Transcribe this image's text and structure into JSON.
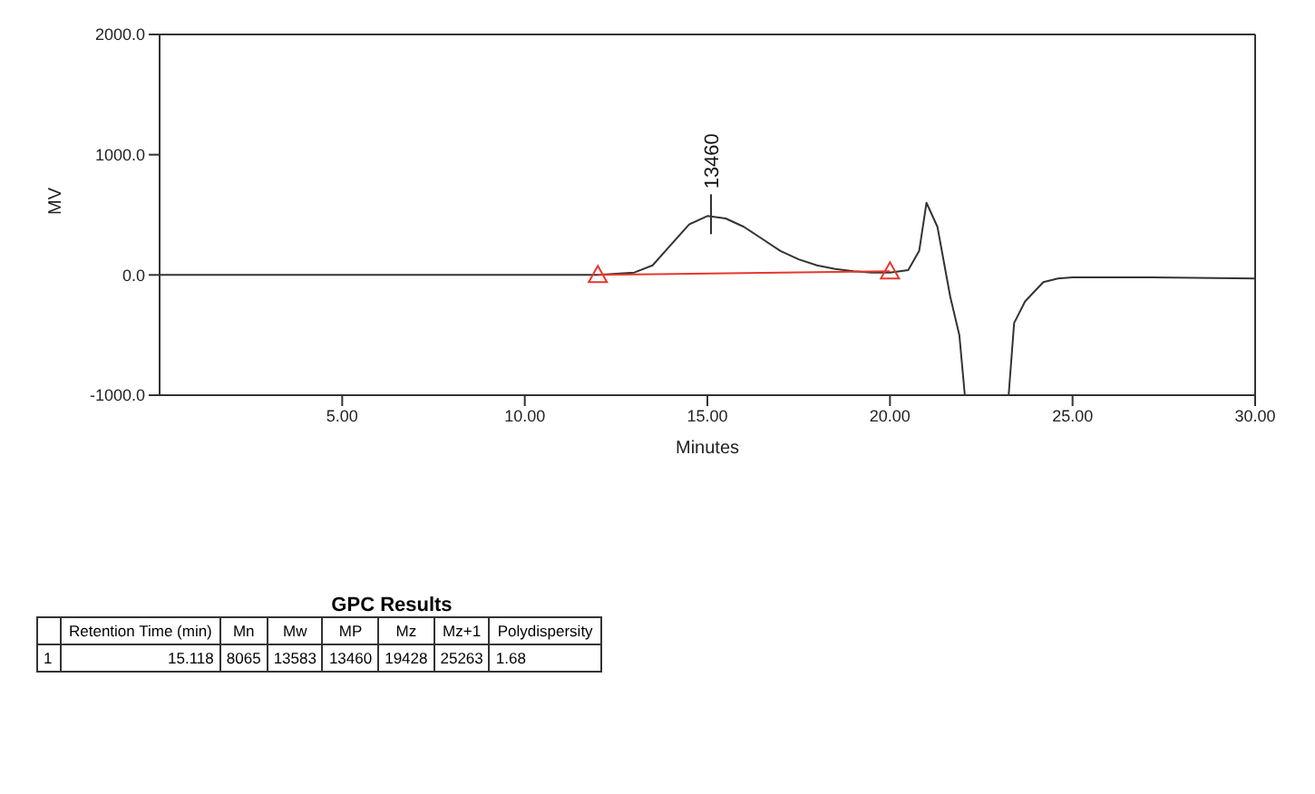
{
  "chart_data": {
    "type": "line",
    "xlabel": "Minutes",
    "ylabel": "MV",
    "xlim": [
      0,
      30
    ],
    "xticks": [
      {
        "value": 5,
        "label": "5.00"
      },
      {
        "value": 10,
        "label": "10.00"
      },
      {
        "value": 15,
        "label": "15.00"
      },
      {
        "value": 20,
        "label": "20.00"
      },
      {
        "value": 25,
        "label": "25.00"
      },
      {
        "value": 30,
        "label": "30.00"
      }
    ],
    "ylim": [
      -1000,
      2000
    ],
    "yticks": [
      {
        "value": -1000,
        "label": "-1000.0"
      },
      {
        "value": 0,
        "label": "0.0"
      },
      {
        "value": 1000,
        "label": "1000.0"
      },
      {
        "value": 2000,
        "label": "2000.0"
      }
    ],
    "grid": false,
    "marker": "none",
    "series": [
      {
        "color": "#333333",
        "x": [
          0,
          5,
          10,
          12,
          13,
          13.5,
          14,
          14.5,
          15,
          15.5,
          16,
          16.5,
          17,
          17.5,
          18,
          18.5,
          19,
          19.5,
          20,
          20.5,
          20.8,
          21,
          21.3,
          21.65,
          21.9,
          22.05,
          22.6,
          23.25,
          23.4,
          23.7,
          24.2,
          24.6,
          25,
          27,
          30
        ],
        "values": [
          0,
          0,
          0,
          0,
          20,
          80,
          250,
          420,
          490,
          470,
          400,
          300,
          200,
          130,
          80,
          50,
          30,
          20,
          20,
          40,
          200,
          600,
          400,
          -180,
          -500,
          -1000,
          null,
          -1000,
          -400,
          -220,
          -60,
          -30,
          -20,
          -20,
          -30
        ]
      },
      {
        "color": "#e8372c",
        "x": [
          12,
          20
        ],
        "values": [
          0,
          30
        ],
        "marker": "triangle"
      }
    ],
    "annotations": [
      {
        "text": "13460",
        "x": 15.1,
        "y": 490
      },
      "GPC Results",
      "Retention Time (min)",
      "Mn",
      "Mw",
      "MP",
      "Mz",
      "Mz+1",
      "Polydispersity",
      "1",
      "15.118",
      "8065",
      "13583",
      "13460",
      "19428",
      "25263",
      "1.68"
    ]
  }
}
